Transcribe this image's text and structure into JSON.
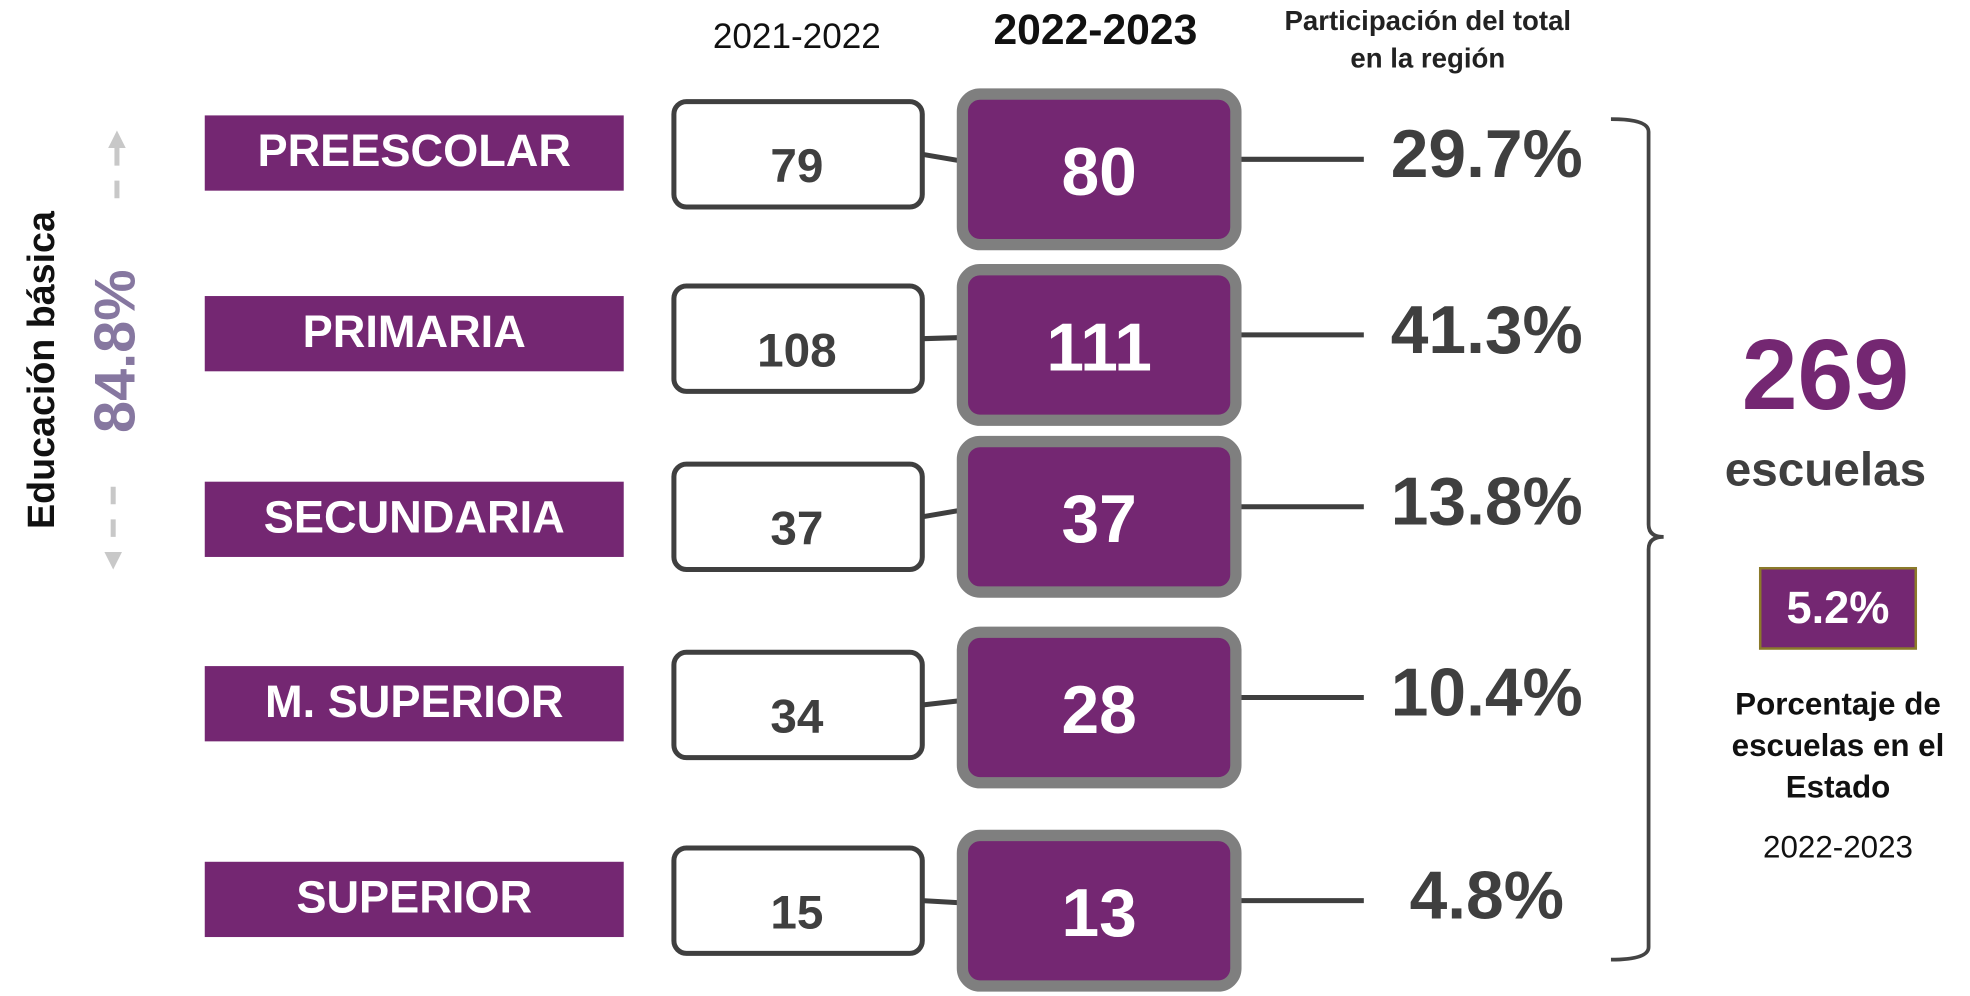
{
  "header": {
    "prev_year": "2021-2022",
    "curr_year": "2022-2023",
    "share_title": [
      "Participación del total",
      "en la región"
    ]
  },
  "side": {
    "label": "Educación básica",
    "share": "84.8%"
  },
  "rows": [
    {
      "level": "PREESCOLAR",
      "prev": "79",
      "curr": "80",
      "share": "29.7%"
    },
    {
      "level": "PRIMARIA",
      "prev": "108",
      "curr": "111",
      "share": "41.3%"
    },
    {
      "level": "SECUNDARIA",
      "prev": "37",
      "curr": "37",
      "share": "13.8%"
    },
    {
      "level": "M. SUPERIOR",
      "prev": "34",
      "curr": "28",
      "share": "10.4%"
    },
    {
      "level": "SUPERIOR",
      "prev": "15",
      "curr": "13",
      "share": "4.8%"
    }
  ],
  "total": {
    "value": "269",
    "unit": "escuelas",
    "state_share": "5.2%",
    "caption": [
      "Porcentaje de",
      "escuelas en el",
      "Estado"
    ],
    "year": "2022-2023"
  }
}
